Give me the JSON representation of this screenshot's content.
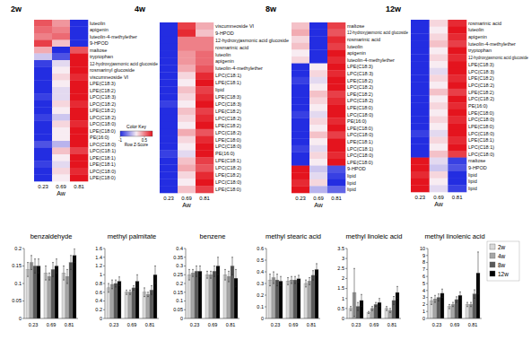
{
  "chart_data": [
    {
      "type": "heatmap",
      "title": "2w",
      "categories": [
        "0.23",
        "0.69",
        "0.81"
      ],
      "x_label": "Aw",
      "rows": [
        "luteolin",
        "apigenin",
        "luteolin-4-methylether",
        "9-HPOD",
        "maltose",
        "tryptophan",
        "12-hydroxyjasmonic acid glucoside",
        "rosmarinyl glucoside",
        "viscumneoside VI",
        "LPE(C18:3)",
        "LPE(C18:2)",
        "LPC(C18:3)",
        "LPC(C18:2)",
        "LPE(C18:2)",
        "LPC(C18:2)",
        "LPC(C18:0)",
        "LPE(C18:0)",
        "PE(16:0)",
        "LPC(C18:0)",
        "LPC(C18:1)",
        "LPE(C18:1)",
        "LPE(C18:1)",
        "LPC(C18:0)",
        "LPE(C18:0)"
      ],
      "cells": [
        [
          0.7,
          0.4,
          -1
        ],
        [
          0.6,
          0.5,
          -1
        ],
        [
          0.5,
          0.6,
          -1
        ],
        [
          0.8,
          0.2,
          -1
        ],
        [
          0.3,
          -1,
          0.7
        ],
        [
          -0.2,
          -0.8,
          1
        ],
        [
          -0.9,
          -0.1,
          1
        ],
        [
          -1,
          0,
          1
        ],
        [
          -1,
          0.1,
          0.9
        ],
        [
          -1,
          0,
          1
        ],
        [
          -1,
          -0.1,
          1
        ],
        [
          -0.9,
          -0.1,
          1
        ],
        [
          -1,
          0.1,
          0.9
        ],
        [
          -1,
          0,
          1
        ],
        [
          -0.9,
          -0.2,
          1
        ],
        [
          -1,
          0.1,
          0.9
        ],
        [
          -1,
          0,
          1
        ],
        [
          -1,
          0,
          1
        ],
        [
          -0.8,
          -0.3,
          1
        ],
        [
          -1,
          0.2,
          0.8
        ],
        [
          -1,
          0,
          1
        ],
        [
          -0.9,
          -0.1,
          1
        ],
        [
          -1,
          0.1,
          0.9
        ],
        [
          -1,
          0,
          1
        ]
      ],
      "colorbar": {
        "title": "Color Key",
        "label": "Row Z-Score",
        "range": [
          -1,
          1
        ],
        "ticks": [
          -1,
          0.5
        ]
      }
    },
    {
      "type": "heatmap",
      "title": "4w",
      "categories": [
        "0.23",
        "0.69",
        "0.81"
      ],
      "x_label": "Aw",
      "rows": [
        "viscumneoside VI",
        "9-HPOD",
        "12-hydroxyjasmonic acid glucoside",
        "rosmarinic acid",
        "luteolin",
        "apigenin",
        "luteolin-4-methylether",
        "LPC(C18:1)",
        "LPE(C18:1)",
        "lipid",
        "LPE(C18:3)",
        "LPC(C18:3)",
        "LPE(C18:2)",
        "LPC(C18:2)",
        "LPE(C18:2)",
        "LPC(C18:2)",
        "LPE(C18:0)",
        "LPC(C18:0)",
        "PE(16:0)",
        "LPE(C18:1)",
        "LPC(C18:2)",
        "LPE(C18:2)",
        "LPC(C18:0)",
        "LPE(C18:0)"
      ],
      "cells": [
        [
          -1,
          0.8,
          0.3
        ],
        [
          -1,
          0.9,
          0.2
        ],
        [
          -1,
          0.5,
          0.5
        ],
        [
          -1,
          0.5,
          0.5
        ],
        [
          -1,
          0.4,
          0.6
        ],
        [
          -1,
          0.4,
          0.6
        ],
        [
          -1,
          0.3,
          0.7
        ],
        [
          -1,
          0.1,
          0.9
        ],
        [
          -1,
          0,
          1
        ],
        [
          -1,
          0.2,
          0.8
        ],
        [
          -1,
          0.1,
          0.9
        ],
        [
          -0.9,
          0,
          1
        ],
        [
          -1,
          0.2,
          0.8
        ],
        [
          -1,
          0.1,
          0.9
        ],
        [
          -1,
          0,
          1
        ],
        [
          -1,
          0.3,
          0.7
        ],
        [
          -1,
          0.1,
          0.9
        ],
        [
          -1,
          0,
          1
        ],
        [
          -0.9,
          -0.1,
          1
        ],
        [
          -1,
          0.2,
          0.8
        ],
        [
          -1,
          0.3,
          0.7
        ],
        [
          -1,
          0.1,
          0.9
        ],
        [
          -1,
          0,
          1
        ],
        [
          -1,
          0.2,
          0.8
        ]
      ]
    },
    {
      "type": "heatmap",
      "title": "8w",
      "categories": [
        "0.23",
        "0.69",
        "0.81"
      ],
      "x_label": "Aw",
      "rows": [
        "maltose",
        "12-hydroxyjasmonic acid glucoside",
        "rosmarinic acid",
        "luteolin",
        "apigenin",
        "luteolin-4-methylether",
        "LPE(C18:3)",
        "LPC(C18:3)",
        "LPE(C18:2)",
        "LPC(C18:2)",
        "LPE(C18:2)",
        "LPC(C18:2)",
        "LPE(C18:0)",
        "LPC(C18:0)",
        "PE(16:0)",
        "LPE(C18:0)",
        "LPC(C18:0)",
        "LPE(C18:1)",
        "LPC(C18:1)",
        "LPC(C18:0)",
        "LPE(C18:0)",
        "9-HPOD",
        "lipid",
        "lipid",
        "lipid"
      ],
      "cells": [
        [
          0.2,
          -1,
          0.8
        ],
        [
          0.3,
          -1,
          0.7
        ],
        [
          0.1,
          -1,
          0.9
        ],
        [
          0.2,
          -1,
          0.8
        ],
        [
          0,
          -1,
          1
        ],
        [
          0.1,
          -1,
          0.9
        ],
        [
          -1,
          0,
          1
        ],
        [
          -1,
          0.1,
          0.9
        ],
        [
          -0.9,
          -0.1,
          1
        ],
        [
          -1,
          0,
          1
        ],
        [
          -1,
          0.2,
          0.8
        ],
        [
          -1,
          0.1,
          0.9
        ],
        [
          -1,
          0,
          1
        ],
        [
          -0.9,
          -0.1,
          1
        ],
        [
          -1,
          0.1,
          0.9
        ],
        [
          -1,
          0,
          1
        ],
        [
          -1,
          0.2,
          0.8
        ],
        [
          -1,
          0,
          1
        ],
        [
          -0.9,
          -0.1,
          1
        ],
        [
          -1,
          0.1,
          0.9
        ],
        [
          -1,
          0,
          1
        ],
        [
          1,
          -0.2,
          -0.8
        ],
        [
          1,
          -0.1,
          -0.9
        ],
        [
          0.9,
          0.1,
          -1
        ],
        [
          1,
          -0.3,
          -0.7
        ]
      ]
    },
    {
      "type": "heatmap",
      "title": "12w",
      "categories": [
        "0.23",
        "0.69",
        "0.81"
      ],
      "x_label": "Aw",
      "rows": [
        "rosmarinic acid",
        "luteolin",
        "apigenin",
        "luteolin-4-methylether",
        "tryptophan",
        "12-hydroxyjasmonic acid glucoside",
        "LPE(C18:3)",
        "LPC(C18:3)",
        "LPE(C18:2)",
        "LPC(C18:2)",
        "LPE(C18:2)",
        "LPC(C18:2)",
        "PE(16:0)",
        "LPE(C18:0)",
        "LPC(C18:0)",
        "LPE(C18:0)",
        "LPC(C18:0)",
        "LPE(C18:1)",
        "LPC(C18:1)",
        "LPC(C18:0)",
        "maltose",
        "9-HPOD",
        "lipid",
        "lipid",
        "lipid"
      ],
      "cells": [
        [
          -1,
          0.1,
          0.9
        ],
        [
          -1,
          0,
          1
        ],
        [
          -1,
          0.1,
          0.9
        ],
        [
          -1,
          0.2,
          0.8
        ],
        [
          -1,
          0,
          1
        ],
        [
          -1,
          0.1,
          0.9
        ],
        [
          -1,
          0,
          1
        ],
        [
          -1,
          -0.1,
          1
        ],
        [
          -1,
          0.1,
          0.9
        ],
        [
          -1,
          0,
          1
        ],
        [
          -1,
          0.2,
          0.8
        ],
        [
          -1,
          0,
          1
        ],
        [
          -1,
          0.1,
          0.9
        ],
        [
          -1,
          0,
          1
        ],
        [
          -1,
          0.1,
          0.9
        ],
        [
          -1,
          0,
          1
        ],
        [
          -0.9,
          -0.1,
          1
        ],
        [
          -1,
          0.1,
          0.9
        ],
        [
          -1,
          0,
          1
        ],
        [
          -1,
          0.2,
          0.8
        ],
        [
          1,
          -0.1,
          -0.9
        ],
        [
          1,
          -0.2,
          -0.8
        ],
        [
          0.9,
          0.1,
          -1
        ],
        [
          1,
          0,
          -1
        ],
        [
          1,
          -0.1,
          -0.9
        ]
      ]
    },
    {
      "type": "bar",
      "title": "benzaldehyde",
      "categories": [
        "0.23",
        "0.69",
        "0.81"
      ],
      "ylim": [
        0,
        0.2
      ],
      "yticks": [
        0,
        0.05,
        0.1,
        0.15,
        0.2
      ],
      "series": [
        {
          "name": "2w",
          "color": "#d9d9d9",
          "values": [
            0.14,
            0.13,
            0.13
          ],
          "errors": [
            0.02,
            0.02,
            0.02
          ]
        },
        {
          "name": "4w",
          "color": "#a6a6a6",
          "values": [
            0.16,
            0.12,
            0.12
          ],
          "errors": [
            0.02,
            0.01,
            0.02
          ]
        },
        {
          "name": "8w",
          "color": "#595959",
          "values": [
            0.15,
            0.14,
            0.16
          ],
          "errors": [
            0.02,
            0.02,
            0.02
          ]
        },
        {
          "name": "12w",
          "color": "#000000",
          "values": [
            0.15,
            0.15,
            0.18
          ],
          "errors": [
            0.02,
            0.02,
            0.02
          ]
        }
      ]
    },
    {
      "type": "bar",
      "title": "methyl palmitate",
      "categories": [
        "0.23",
        "0.69",
        "0.81"
      ],
      "ylim": [
        0,
        1.6
      ],
      "yticks": [
        0,
        0.2,
        0.4,
        0.6,
        0.8,
        1,
        1.2,
        1.4,
        1.6
      ],
      "series": [
        {
          "name": "2w",
          "color": "#d9d9d9",
          "values": [
            0.7,
            0.6,
            0.6
          ],
          "errors": [
            0.1,
            0.05,
            0.1
          ]
        },
        {
          "name": "4w",
          "color": "#a6a6a6",
          "values": [
            0.78,
            0.6,
            0.55
          ],
          "errors": [
            0.1,
            0.05,
            0.05
          ]
        },
        {
          "name": "8w",
          "color": "#595959",
          "values": [
            0.8,
            0.7,
            0.65
          ],
          "errors": [
            0.08,
            0.05,
            0.1
          ]
        },
        {
          "name": "12w",
          "color": "#000000",
          "values": [
            0.85,
            0.85,
            1
          ],
          "errors": [
            0.1,
            0.15,
            0.2
          ]
        }
      ]
    },
    {
      "type": "bar",
      "title": "benzene",
      "categories": [
        "0.23",
        "0.69",
        "0.81"
      ],
      "ylim": [
        0,
        0.4
      ],
      "yticks": [
        0,
        0.05,
        0.1,
        0.15,
        0.2,
        0.25,
        0.3,
        0.35,
        0.4
      ],
      "series": [
        {
          "name": "2w",
          "color": "#d9d9d9",
          "values": [
            0.25,
            0.25,
            0.25
          ],
          "errors": [
            0.03,
            0.02,
            0.03
          ]
        },
        {
          "name": "4w",
          "color": "#a6a6a6",
          "values": [
            0.26,
            0.25,
            0.24
          ],
          "errors": [
            0.02,
            0.02,
            0.03
          ]
        },
        {
          "name": "8w",
          "color": "#595959",
          "values": [
            0.27,
            0.27,
            0.3
          ],
          "errors": [
            0.03,
            0.03,
            0.05
          ]
        },
        {
          "name": "12w",
          "color": "#000000",
          "values": [
            0.27,
            0.3,
            0.23
          ],
          "errors": [
            0.03,
            0.05,
            0.05
          ]
        }
      ]
    },
    {
      "type": "bar",
      "title": "methyl stearic acid",
      "categories": [
        "0.23",
        "0.69",
        "0.81"
      ],
      "ylim": [
        0,
        0.6
      ],
      "yticks": [
        0,
        0.1,
        0.2,
        0.3,
        0.4,
        0.5,
        0.6
      ],
      "series": [
        {
          "name": "2w",
          "color": "#d9d9d9",
          "values": [
            0.33,
            0.32,
            0.3
          ],
          "errors": [
            0.05,
            0.03,
            0.03
          ]
        },
        {
          "name": "4w",
          "color": "#a6a6a6",
          "values": [
            0.35,
            0.33,
            0.32
          ],
          "errors": [
            0.05,
            0.03,
            0.03
          ]
        },
        {
          "name": "8w",
          "color": "#595959",
          "values": [
            0.33,
            0.33,
            0.37
          ],
          "errors": [
            0.05,
            0.03,
            0.04
          ]
        },
        {
          "name": "12w",
          "color": "#000000",
          "values": [
            0.32,
            0.34,
            0.42
          ],
          "errors": [
            0.04,
            0.03,
            0.05
          ]
        }
      ]
    },
    {
      "type": "bar",
      "title": "methyl linoleic  acid",
      "categories": [
        "0.23",
        "0.69",
        "0.81"
      ],
      "ylim": [
        0,
        3.5
      ],
      "yticks": [
        0,
        0.5,
        1,
        1.5,
        2,
        2.5,
        3,
        3.5
      ],
      "series": [
        {
          "name": "2w",
          "color": "#d9d9d9",
          "values": [
            0.5,
            0.3,
            0.5
          ],
          "errors": [
            0.1,
            0.05,
            0.1
          ]
        },
        {
          "name": "4w",
          "color": "#a6a6a6",
          "values": [
            1.3,
            0.5,
            0.4
          ],
          "errors": [
            1.2,
            0.1,
            0.1
          ]
        },
        {
          "name": "8w",
          "color": "#595959",
          "values": [
            0.6,
            0.7,
            0.9
          ],
          "errors": [
            0.2,
            0.1,
            0.2
          ]
        },
        {
          "name": "12w",
          "color": "#000000",
          "values": [
            0.9,
            0.8,
            1.3
          ],
          "errors": [
            0.3,
            0.2,
            0.3
          ]
        }
      ]
    },
    {
      "type": "bar",
      "title": "methyl linolenic  acid",
      "categories": [
        "0.23",
        "0.69",
        "0.81"
      ],
      "ylim": [
        0,
        10
      ],
      "yticks": [
        0,
        1,
        2,
        3,
        4,
        5,
        6,
        7,
        8,
        9,
        10
      ],
      "legend": "right",
      "series": [
        {
          "name": "2w",
          "color": "#d9d9d9",
          "values": [
            2.5,
            1.7,
            2
          ],
          "errors": [
            0.5,
            0.3,
            0.3
          ]
        },
        {
          "name": "4w",
          "color": "#a6a6a6",
          "values": [
            2.8,
            2,
            2
          ],
          "errors": [
            0.5,
            0.3,
            0.3
          ]
        },
        {
          "name": "8w",
          "color": "#595959",
          "values": [
            3,
            2.7,
            3.5
          ],
          "errors": [
            0.5,
            0.4,
            0.6
          ]
        },
        {
          "name": "12w",
          "color": "#000000",
          "values": [
            3.6,
            3.3,
            6.5
          ],
          "errors": [
            0.6,
            0.5,
            3
          ]
        }
      ]
    }
  ]
}
